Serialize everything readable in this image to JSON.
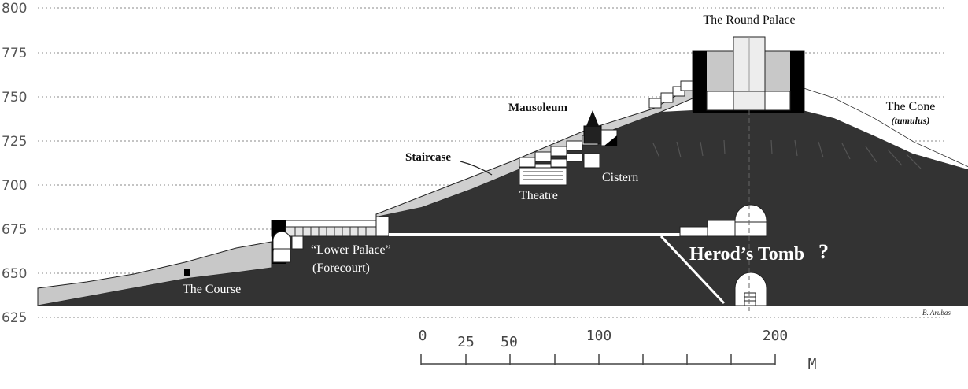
{
  "y_axis": {
    "ticks": [
      "800",
      "775",
      "750",
      "725",
      "700",
      "675",
      "650",
      "625"
    ]
  },
  "labels": {
    "round_palace": "The Round Palace",
    "the_cone": "The Cone",
    "tumulus": "(tumulus)",
    "mausoleum": "Mausoleum",
    "staircase": "Staircase",
    "cistern": "Cistern",
    "theatre": "Theatre",
    "lower_palace_1": "“Lower Palace”",
    "lower_palace_2": "(Forecourt)",
    "the_course": "The Course",
    "herods_tomb": "Herod’s Tomb",
    "question_mark": "?",
    "credit": "B. Arubas"
  },
  "scale_bar": {
    "ticks": [
      "0",
      "25",
      "50",
      "100",
      "200"
    ],
    "unit": "M"
  },
  "colors": {
    "hill": "#333333",
    "fill_light": "#c8c8c8",
    "structure": "#ffffff",
    "outline": "#222222"
  }
}
